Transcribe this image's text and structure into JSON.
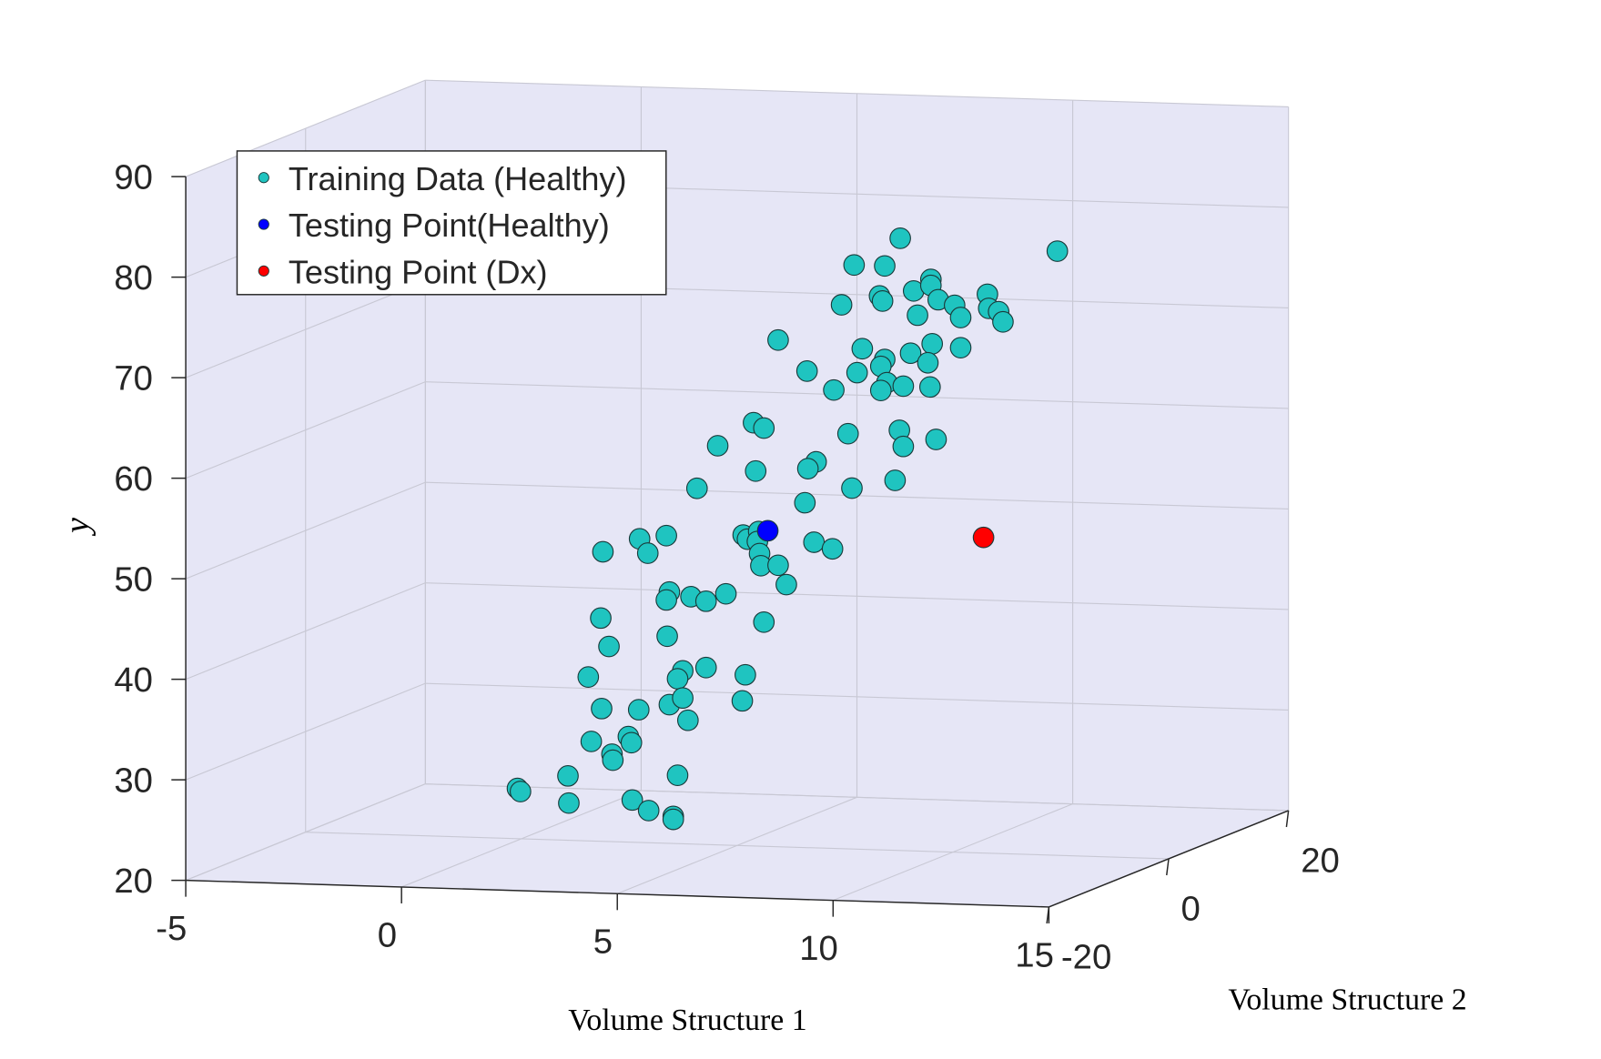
{
  "chart_data": {
    "type": "scatter3d",
    "xlabel": "Volume Structure 1",
    "zlabel": "Volume Structure 2",
    "ylabel": "y",
    "xlim": [
      -5,
      15
    ],
    "xticks": [
      -5,
      0,
      5,
      10,
      15
    ],
    "zlim": [
      -20,
      20
    ],
    "zticks": [
      -20,
      0,
      20
    ],
    "ylim": [
      20,
      90
    ],
    "yticks": [
      20,
      30,
      40,
      50,
      60,
      70,
      80,
      90
    ],
    "grid": true,
    "legend": "upper left",
    "series": [
      {
        "name": "Training Data (Healthy)",
        "color": "#1fc4c0",
        "x": [
          12.42,
          8.78,
          7.71,
          8.42,
          8.3,
          8.37,
          7.42,
          9.09,
          9.49,
          9.49,
          9.66,
          9.18,
          10.04,
          10.18,
          10.8,
          10.83,
          11.06,
          11.16,
          5.95,
          7.9,
          9.02,
          9.52,
          10.18,
          8.42,
          9.42,
          6.62,
          7.78,
          8.33,
          8.47,
          8.85,
          8.33,
          9.47,
          7.24,
          5.38,
          5.62,
          8.76,
          7.57,
          9.61,
          8.85,
          4.55,
          6.83,
          6.64,
          5.43,
          8.66,
          7.66,
          4.07,
          6.57,
          2.74,
          3.36,
          2.93,
          1.89,
          5.14,
          5.24,
          5.5,
          5.47,
          6.78,
          7.21,
          5.52,
          5.55,
          5.95,
          6.14,
          3.43,
          3.36,
          3.93,
          4.28,
          4.74,
          1.84,
          5.62,
          2.03,
          3.38,
          1.55,
          3.74,
          3.62,
          4.28,
          5.19,
          1.86,
          2.72,
          3.43,
          3.74,
          3.86,
          5.12,
          1.62,
          2.48,
          2.55,
          2.1,
          2.12,
          1.08,
          3.62,
          -0.09,
          -0.02,
          1.1,
          2.57,
          2.95,
          3.52,
          3.52
        ],
        "values": [
          80.1,
          80.9,
          78.1,
          78.1,
          75.1,
          74.6,
          74.1,
          75.7,
          76.9,
          76.3,
          74.9,
          73.3,
          74.4,
          73.2,
          75.6,
          74.2,
          73.9,
          72.9,
          70.4,
          69.8,
          69.5,
          70.5,
          70.2,
          68.8,
          68.6,
          67.4,
          67.4,
          68.1,
          66.5,
          66.2,
          65.7,
          66.2,
          65.6,
          62.1,
          61.6,
          61.8,
          61.3,
          61.0,
          60.2,
          59.7,
          58.4,
          57.7,
          57.3,
          56.8,
          55.9,
          55.4,
          54.3,
          50.2,
          50.6,
          48.8,
          48.8,
          50.9,
          50.5,
          51.3,
          50.3,
          50.4,
          49.8,
          49.1,
          47.9,
          48.0,
          46.1,
          45.0,
          44.2,
          44.6,
          44.2,
          45.0,
          42.2,
          42.3,
          39.4,
          40.6,
          36.3,
          37.2,
          36.4,
          37.6,
          37.0,
          33.2,
          33.2,
          33.8,
          34.5,
          32.3,
          34.4,
          29.9,
          30.5,
          29.9,
          28.7,
          28.1,
          26.4,
          26.8,
          25.0,
          24.7,
          23.7,
          24.2,
          23.2,
          22.7,
          22.4
        ]
      },
      {
        "name": "Testing Point(Healthy)",
        "color": "#0000ff",
        "x": [
          5.71
        ],
        "values": [
          51.4
        ]
      },
      {
        "name": "Testing Point (Dx)",
        "color": "#ff0000",
        "x": [
          10.71
        ],
        "values": [
          51.4
        ]
      }
    ]
  }
}
